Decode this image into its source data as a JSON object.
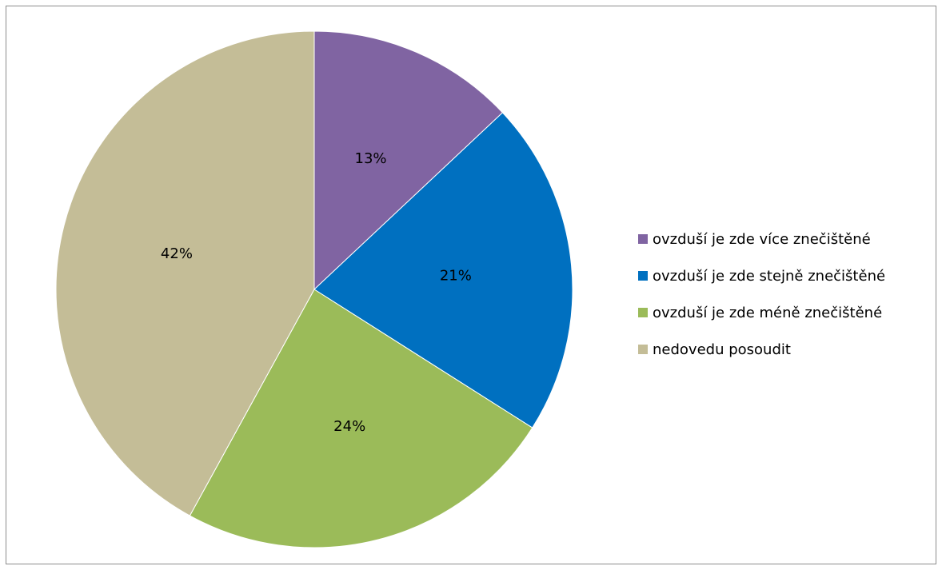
{
  "chart_data": {
    "type": "pie",
    "slices": [
      {
        "label": "ovzduší je zde více znečištěné",
        "value": 13,
        "display": "13%",
        "color": "#8064A2"
      },
      {
        "label": "ovzduší je zde stejně znečištěné",
        "value": 21,
        "display": "21%",
        "color": "#0070C0"
      },
      {
        "label": "ovzduší je zde méně znečištěné",
        "value": 24,
        "display": "24%",
        "color": "#9BBB59"
      },
      {
        "label": "nedovedu posoudit",
        "value": 42,
        "display": "42%",
        "color": "#C4BD97"
      }
    ],
    "start_angle": "12 o'clock",
    "direction": "clockwise",
    "legend_position": "right"
  }
}
